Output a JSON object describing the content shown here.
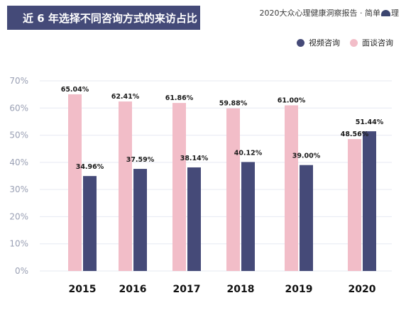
{
  "header": {
    "title": "近 6 年选择不同咨询方式的来访占比",
    "source_prefix": "2020大众心理健康洞察报告 · 简单",
    "source_suffix": "理",
    "logo_icon": "heart-brain-icon"
  },
  "colors": {
    "banner": "#444a78",
    "video": "#454a78",
    "inperson": "#f2bdc8",
    "gridline": "#e6e9f2",
    "tick": "#9aa0b4"
  },
  "chart_data": {
    "type": "bar",
    "title": "近 6 年选择不同咨询方式的来访占比",
    "categories": [
      "2015",
      "2016",
      "2017",
      "2018",
      "2019",
      "2020"
    ],
    "series": [
      {
        "name": "面谈咨询",
        "values": [
          65.04,
          62.41,
          61.86,
          59.88,
          61.0,
          48.56
        ],
        "labels": [
          "65.04%",
          "62.41%",
          "61.86%",
          "59.88%",
          "61.00%",
          "48.56%"
        ]
      },
      {
        "name": "视频咨询",
        "values": [
          34.96,
          37.59,
          38.14,
          40.12,
          39.0,
          51.44
        ],
        "labels": [
          "34.96%",
          "37.59%",
          "38.14%",
          "40.12%",
          "39.00%",
          "51.44%"
        ]
      }
    ],
    "yticks": [
      "0%",
      "10%",
      "20%",
      "30%",
      "40%",
      "50%",
      "60%",
      "70%"
    ],
    "ylim": [
      0,
      70
    ],
    "grid": true,
    "legend_position": "top-right"
  }
}
